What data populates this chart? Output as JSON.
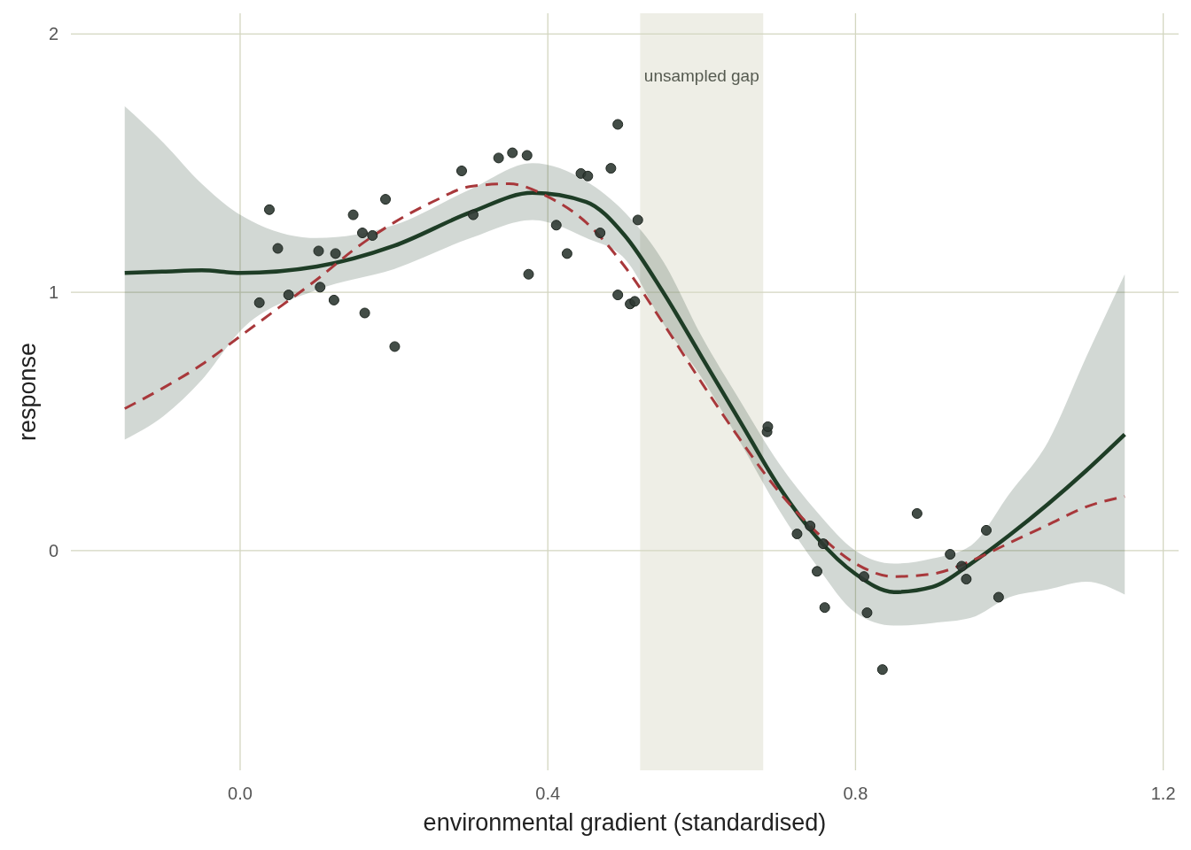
{
  "chart_data": {
    "type": "scatter",
    "xlabel": "environmental gradient (standardised)",
    "ylabel": "response",
    "xlim": [
      -0.22,
      1.22
    ],
    "ylim": [
      -0.85,
      2.08
    ],
    "xticks": [
      {
        "value": 0,
        "label": "0.0"
      },
      0.4,
      0.8,
      {
        "value": 1.2,
        "label": "1.2"
      }
    ],
    "yticks": [
      0,
      1,
      2
    ],
    "grid": true,
    "bands": [
      {
        "axis": "x",
        "from": 0.52,
        "to": 0.68,
        "label": "unsampled gap",
        "color": "#eeeee6"
      }
    ],
    "series": [
      {
        "type": "line",
        "color": "#1e3d26",
        "line_style": "solid",
        "x": [
          -0.15,
          -0.1,
          -0.05,
          0,
          0.1,
          0.2,
          0.3,
          0.38,
          0.45,
          0.5,
          0.55,
          0.6,
          0.65,
          0.7,
          0.75,
          0.8,
          0.85,
          0.9,
          0.95,
          1.0,
          1.05,
          1.1,
          1.15
        ],
        "values": [
          1.075,
          1.08,
          1.085,
          1.075,
          1.1,
          1.18,
          1.31,
          1.385,
          1.35,
          1.22,
          1.0,
          0.75,
          0.5,
          0.25,
          0.05,
          -0.09,
          -0.16,
          -0.14,
          -0.05,
          0.06,
          0.18,
          0.31,
          0.45
        ],
        "lower": [
          0.43,
          0.52,
          0.66,
          0.85,
          1.01,
          1.09,
          1.21,
          1.28,
          1.21,
          1.13,
          0.88,
          0.67,
          0.42,
          0.16,
          -0.06,
          -0.24,
          -0.29,
          -0.28,
          -0.26,
          -0.18,
          -0.15,
          -0.12,
          -0.17
        ],
        "upper": [
          1.72,
          1.58,
          1.42,
          1.3,
          1.21,
          1.26,
          1.4,
          1.5,
          1.43,
          1.31,
          1.12,
          0.83,
          0.58,
          0.34,
          0.15,
          0.0,
          -0.05,
          -0.03,
          0.02,
          0.22,
          0.42,
          0.75,
          1.07
        ]
      },
      {
        "type": "line",
        "color": "#a8383b",
        "line_style": "dashed",
        "x": [
          -0.15,
          -0.1,
          -0.05,
          0,
          0.05,
          0.1,
          0.15,
          0.2,
          0.25,
          0.3,
          0.35,
          0.4,
          0.45,
          0.5,
          0.55,
          0.6,
          0.65,
          0.7,
          0.75,
          0.8,
          0.85,
          0.9,
          0.95,
          1.0,
          1.05,
          1.1,
          1.15
        ],
        "values": [
          0.55,
          0.63,
          0.72,
          0.83,
          0.94,
          1.05,
          1.17,
          1.27,
          1.35,
          1.41,
          1.42,
          1.37,
          1.27,
          1.1,
          0.88,
          0.65,
          0.43,
          0.23,
          0.07,
          -0.05,
          -0.1,
          -0.09,
          -0.04,
          0.03,
          0.1,
          0.17,
          0.21
        ]
      },
      {
        "color": "#2f3a33",
        "marker": "circle",
        "x": [
          0.025,
          0.038,
          0.049,
          0.063,
          0.102,
          0.104,
          0.122,
          0.124,
          0.147,
          0.159,
          0.162,
          0.172,
          0.189,
          0.201,
          0.288,
          0.303,
          0.336,
          0.354,
          0.373,
          0.375,
          0.411,
          0.425,
          0.443,
          0.452,
          0.468,
          0.482,
          0.491,
          0.491,
          0.507,
          0.513,
          0.517,
          0.685,
          0.686,
          0.724,
          0.741,
          0.75,
          0.758,
          0.76,
          0.811,
          0.815,
          0.835,
          0.88,
          0.923,
          0.938,
          0.944,
          0.97,
          0.986
        ],
        "values": [
          0.96,
          1.32,
          1.17,
          0.99,
          1.16,
          1.02,
          0.97,
          1.15,
          1.3,
          1.23,
          0.92,
          1.22,
          1.36,
          0.79,
          1.47,
          1.3,
          1.52,
          1.54,
          1.53,
          1.07,
          1.26,
          1.15,
          1.46,
          1.45,
          1.23,
          1.48,
          1.65,
          0.99,
          0.955,
          0.965,
          1.28,
          0.46,
          0.48,
          0.065,
          0.096,
          -0.08,
          0.027,
          -0.22,
          -0.1,
          -0.24,
          -0.46,
          0.144,
          -0.014,
          -0.06,
          -0.11,
          0.079,
          -0.18
        ]
      }
    ]
  }
}
